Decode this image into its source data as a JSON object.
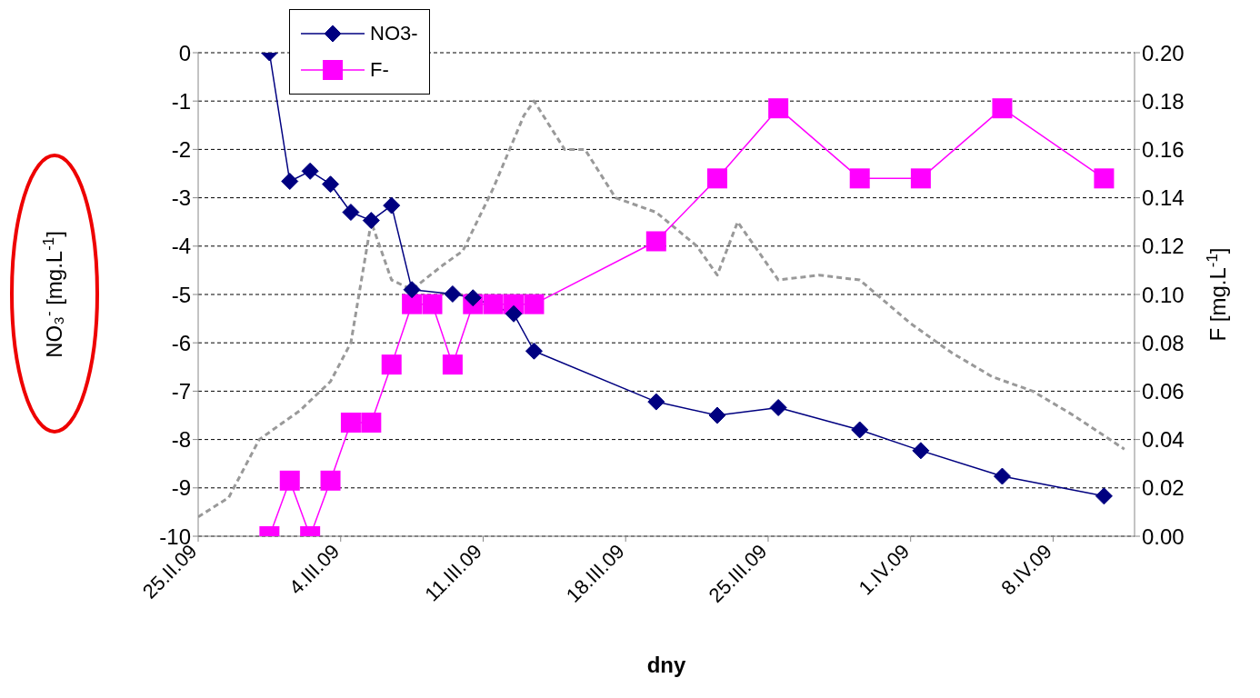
{
  "chart_data": {
    "type": "line",
    "xlabel": "dny",
    "ylabel": "NO₃$^{-}$ [mg.L$^{-1}$]",
    "y2label": "F [mg.L$^{-1}$]",
    "xlim": [
      "--02-25",
      "--04-12"
    ],
    "xticks": [
      {
        "value": "--02-25",
        "label": "25.II.09"
      },
      {
        "value": "--03-04",
        "label": "4.III.09"
      },
      {
        "value": "--03-11",
        "label": "11.III.09"
      },
      {
        "value": "--03-18",
        "label": "18.III.09"
      },
      {
        "value": "--03-25",
        "label": "25.III.09"
      },
      {
        "value": "--04-01",
        "label": "1.IV.09"
      },
      {
        "value": "--04-08",
        "label": "8.IV.09"
      }
    ],
    "ylim": [
      -10,
      0
    ],
    "yticks": [
      -10,
      -9,
      -8,
      -7,
      -6,
      -5,
      -4,
      -3,
      -2,
      -1,
      0
    ],
    "y2lim": [
      0,
      0.2
    ],
    "y2ticks": [
      {
        "value": 0,
        "label": "0.00"
      },
      {
        "value": 0.02,
        "label": "0.02"
      },
      {
        "value": 0.04,
        "label": "0.04"
      },
      {
        "value": 0.06,
        "label": "0.06"
      },
      {
        "value": 0.08,
        "label": "0.08"
      },
      {
        "value": 0.1,
        "label": "0.10"
      },
      {
        "value": 0.12,
        "label": "0.12"
      },
      {
        "value": 0.14,
        "label": "0.14"
      },
      {
        "value": 0.16,
        "label": "0.16"
      },
      {
        "value": 0.18,
        "label": "0.18"
      },
      {
        "value": 0.2,
        "label": "0.20"
      }
    ],
    "grid": "y",
    "legend": "top left",
    "series": [
      {
        "name": "NO3-",
        "color": "#000080",
        "marker": "diamond",
        "line_style": "solid",
        "x": [
          "--02-28T12:00",
          "--03-01T12:00",
          "--03-02T12:00",
          "--03-03T12:00",
          "--03-04T12:00",
          "--03-05T12:00",
          "--03-06T12:00",
          "--03-07T12:00",
          "--03-09T12:00",
          "--03-10T12:00",
          "--03-12T12:00",
          "--03-13T12:00",
          "--03-19T12:00",
          "--03-22T12:00",
          "--03-25T12:00",
          "--03-29T12:00",
          "--04-01T12:00",
          "--04-05T12:00",
          "--04-10T12:00"
        ],
        "values": [
          0,
          -2.66,
          -2.45,
          -2.72,
          -3.3,
          -3.47,
          -3.16,
          -4.9,
          -4.99,
          -5.07,
          -5.4,
          -6.17,
          -7.22,
          -7.5,
          -7.34,
          -7.8,
          -8.23,
          -8.76,
          -9.17
        ]
      },
      {
        "name": "F-",
        "color": "#ff00ff",
        "marker": "square",
        "line_style": "solid",
        "axis": "y2",
        "x": [
          "--02-28T12:00",
          "--03-01T12:00",
          "--03-02T12:00",
          "--03-03T12:00",
          "--03-04T12:00",
          "--03-05T12:00",
          "--03-06T12:00",
          "--03-07T12:00",
          "--03-08T12:00",
          "--03-09T12:00",
          "--03-10T12:00",
          "--03-11T12:00",
          "--03-12T12:00",
          "--03-13T12:00",
          "--03-19T12:00",
          "--03-22T12:00",
          "--03-25T12:00",
          "--03-29T12:00",
          "--04-01T12:00",
          "--04-05T12:00",
          "--04-10T12:00"
        ],
        "values": [
          0,
          0.023,
          0,
          0.023,
          0.047,
          0.047,
          0.071,
          0.096,
          0.096,
          0.071,
          0.096,
          0.096,
          0.096,
          0.096,
          0.122,
          0.148,
          0.177,
          0.148,
          0.148,
          0.177,
          0.148
        ]
      },
      {
        "color": "#999999",
        "marker": "none",
        "line_style": "dashed",
        "x": [
          "--02-25",
          "--02-26T12:00",
          "--02-28",
          "--03-02",
          "--03-03T12:00",
          "--03-04T12:00",
          "--03-05T12:00",
          "--03-06T12:00",
          "--03-07T12:00",
          "--03-09",
          "--03-10",
          "--03-11T12:00",
          "--03-13",
          "--03-13T12:00",
          "--03-15",
          "--03-16",
          "--03-17T12:00",
          "--03-19T12:00",
          "--03-21T12:00",
          "--03-22T12:00",
          "--03-23T12:00",
          "--03-25T12:00",
          "--03-27T12:00",
          "--03-29T12:00",
          "--04-01",
          "--04-03",
          "--04-05",
          "--04-07",
          "--04-09",
          "--04-11T12:00"
        ],
        "values": [
          -9.6,
          -9.2,
          -8.0,
          -7.4,
          -6.8,
          -6.0,
          -3.5,
          -4.7,
          -4.9,
          -4.4,
          -4.1,
          -2.8,
          -1.3,
          -1.0,
          -2.0,
          -2.0,
          -3.0,
          -3.3,
          -4.0,
          -4.6,
          -3.5,
          -4.7,
          -4.6,
          -4.7,
          -5.6,
          -6.2,
          -6.7,
          -7.0,
          -7.5,
          -8.2
        ]
      }
    ]
  }
}
